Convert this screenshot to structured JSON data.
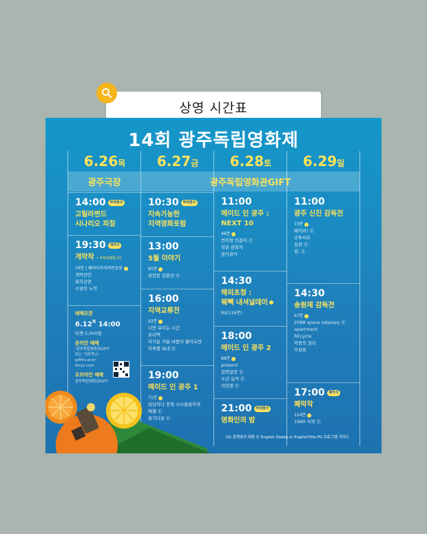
{
  "search": {
    "label": "상영 시간표"
  },
  "poster": {
    "title": "14회 광주독립영화제",
    "dates": [
      {
        "date": "6.26",
        "day": "목"
      },
      {
        "date": "6.27",
        "day": "금"
      },
      {
        "date": "6.28",
        "day": "토"
      },
      {
        "date": "6.29",
        "day": "일"
      }
    ],
    "venues": [
      "광주극장",
      "광주독립영화관GIFT"
    ],
    "col1": {
      "s1": {
        "time": "14:00",
        "badge": "부대행사",
        "title1": "고릴라펀드",
        "title2": "시나리오 피칭"
      },
      "s2": {
        "time": "19:30",
        "badge": "개막식",
        "title": "개막작",
        "note": "• 무료상영입니다",
        "meta": "79분 | 배리어프리버전상영",
        "items": [
          "개막선언",
          "축하공연",
          "소영의 노력"
        ]
      },
      "presale": {
        "label": "예매오픈",
        "date": "6.12",
        "day": "목",
        "time": "14:00",
        "price": "티켓 5,000원",
        "online_label": "온라인 예매",
        "online_lines": [
          "'광주독립영화관GIFT'",
          "또는 '디트릭스'",
          "gift4u.or.kr",
          "dtryx.com"
        ],
        "offline_label": "오프라인 예매",
        "offline_place": "광주독립영화관GIFT"
      }
    },
    "col2": {
      "s1": {
        "time": "10:30",
        "badge": "부대행사",
        "title1": "지속가능한",
        "title2": "지역영화포럼"
      },
      "s2": {
        "time": "13:00",
        "title": "5월 이야기",
        "meta": "85분",
        "items": [
          "광천동 김환경 Ⓔ"
        ]
      },
      "s3": {
        "time": "16:00",
        "title": "지역교류전",
        "meta": "92분",
        "items": [
          "너만 보이는 시간",
          "유리벽",
          "차가운 겨울 바람이 불어오면",
          "하루를 보내 Ⓔ"
        ]
      },
      "s4": {
        "time": "19:00",
        "title": "메이드 인 광주 1",
        "meta": "71분",
        "items": [
          "담담하다 못해 시시콜콜하게",
          "애월 Ⓔ",
          "슬기다운 Ⓔ"
        ]
      }
    },
    "col3": {
      "s1": {
        "time": "11:00",
        "title1": "메이드 인 광주 :",
        "title2": "NEXT 10",
        "meta": "46분",
        "items": [
          "번칙왕 민준이 Ⓔ",
          "작은 관찰자",
          "꿈닥꿈닥"
        ]
      },
      "s2": {
        "time": "14:30",
        "title1": "해외초청 :",
        "title2": "웨빽 내셔널데이",
        "meta": "RU(116분)"
      },
      "s3": {
        "time": "18:00",
        "title": "메이드 인 광주 2",
        "meta": "88분",
        "items": [
          "present",
          "얼렁얼렁 Ⓔ",
          "소년 실격 Ⓔ",
          "자전랜 Ⓔ"
        ]
      },
      "s4": {
        "time": "21:00",
        "badge": "부대행사",
        "title": "영화인의 밤"
      }
    },
    "col4": {
      "s1": {
        "time": "11:00",
        "title": "광주 신진 감독전",
        "meta": "73분",
        "items": [
          "베이비! Ⓔ",
          "곳투씨유",
          "심장 Ⓔ",
          "점. Ⓔ"
        ]
      },
      "s2": {
        "time": "14:30",
        "title": "송원재 감독전",
        "meta": "67분",
        "items": [
          "2088 space odyssey Ⓔ",
          "apartment",
          "REcycle",
          "악몽의 원리",
          "주파동"
        ]
      },
      "s3": {
        "time": "17:00",
        "badge": "폐막식",
        "title": "폐막작",
        "meta": "124분",
        "items": [
          "1980 사북 Ⓔ"
        ]
      }
    },
    "legend": "GV 관객과의 대화   Ⓔ English Dialog or EnglishTitle   PG 프로그램 가이드"
  },
  "colors": {
    "accent": "#ffe25a",
    "bg": "#a9b5ae",
    "search_icon": "#f5b51d"
  }
}
